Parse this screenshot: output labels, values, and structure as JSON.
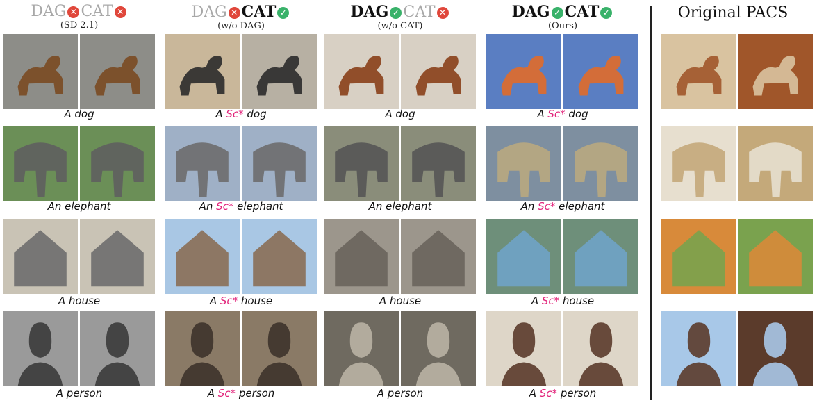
{
  "headers": [
    {
      "dag": "DAG",
      "cat": "CAT",
      "dag_on": false,
      "cat_on": false,
      "sub": "(SD 2.1)"
    },
    {
      "dag": "DAG",
      "cat": "CAT",
      "dag_on": false,
      "cat_on": true,
      "sub": "(w/o DAG)"
    },
    {
      "dag": "DAG",
      "cat": "CAT",
      "dag_on": true,
      "cat_on": false,
      "sub": "(w/o CAT)"
    },
    {
      "dag": "DAG",
      "cat": "CAT",
      "dag_on": true,
      "cat_on": true,
      "sub": "(Ours)"
    }
  ],
  "pacs_title": "Original PACS",
  "captions": [
    [
      "A dog",
      "A Sc* dog",
      "A dog",
      "A Sc* dog"
    ],
    [
      "An elephant",
      "An Sc* elephant",
      "An elephant",
      "An Sc* elephant"
    ],
    [
      "A house",
      "A Sc* house",
      "A house",
      "A Sc* house"
    ],
    [
      "A person",
      "A Sc* person",
      "A person",
      "A Sc* person"
    ]
  ],
  "image_subjects": [
    "dog",
    "elephant",
    "house",
    "person"
  ],
  "colors": {
    "badge_off": "#e0473b",
    "badge_on": "#39b26a",
    "style_token": "#e2237a"
  }
}
